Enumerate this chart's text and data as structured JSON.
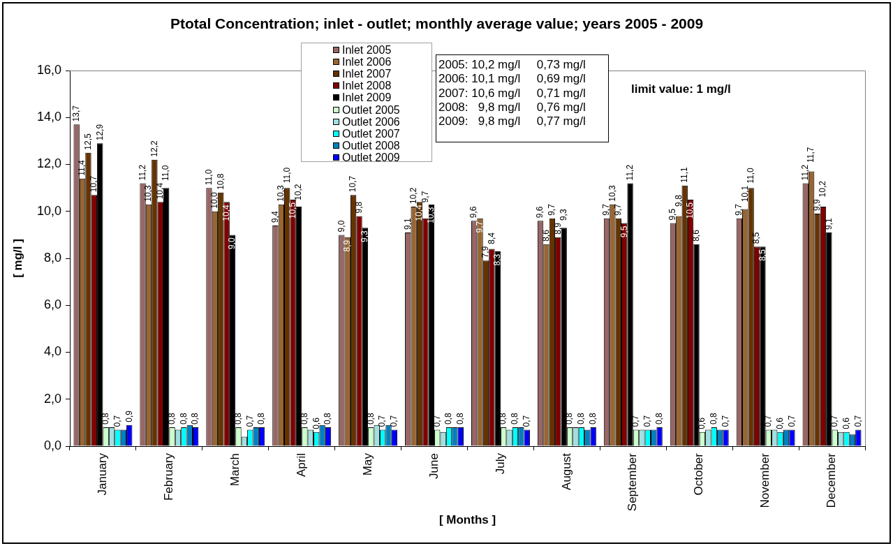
{
  "chart_data": {
    "type": "bar",
    "title": "Ptotal Concentration; inlet - outlet; monthly average value; years 2005 - 2009",
    "xlabel": "[ Months ]",
    "ylabel": "[ mg/l ]",
    "categories": [
      "January",
      "February",
      "March",
      "April",
      "May",
      "June",
      "July",
      "August",
      "September",
      "October",
      "November",
      "December"
    ],
    "series": [
      {
        "name": "Inlet 2005",
        "color": "#996666",
        "values": [
          13.7,
          11.2,
          11.0,
          9.4,
          9.0,
          9.1,
          9.6,
          9.6,
          9.7,
          9.5,
          9.7,
          11.2
        ],
        "value_labels": [
          "13,7",
          "11,2",
          "11,0",
          "9,4",
          "9,0",
          "9,1",
          "9,6",
          "9,6",
          "9,7",
          "9,5",
          "9,7",
          "11,2"
        ]
      },
      {
        "name": "Inlet 2006",
        "color": "#996633",
        "values": [
          11.4,
          10.3,
          10.0,
          10.3,
          8.9,
          10.2,
          9.7,
          8.6,
          10.3,
          9.8,
          10.1,
          11.7
        ],
        "value_labels": [
          "11,4",
          "10,3",
          "10,0",
          "10,3",
          "8,9",
          "10,2",
          "9,7",
          "8,6",
          "10,3",
          "9,8",
          "10,1",
          "11,7"
        ]
      },
      {
        "name": "Inlet 2007",
        "color": "#663300",
        "values": [
          12.5,
          12.2,
          10.8,
          11.0,
          10.7,
          10.4,
          7.9,
          9.7,
          9.7,
          11.1,
          11.0,
          9.9
        ],
        "value_labels": [
          "12,5",
          "12,2",
          "10,8",
          "11,0",
          "10,7",
          "10,4",
          "7,9",
          "9,7",
          "9,7",
          "11,1",
          "11,0",
          "9,9"
        ]
      },
      {
        "name": "Inlet 2008",
        "color": "#800000",
        "values": [
          10.7,
          10.4,
          10.4,
          10.5,
          9.8,
          9.7,
          8.4,
          8.9,
          9.5,
          10.5,
          8.5,
          10.2
        ],
        "value_labels": [
          "10,7",
          "10,4",
          "10,4",
          "10,5",
          "9,8",
          "9,7",
          "8,4",
          "8,9",
          "9,5",
          "10,5",
          "8,5",
          "10,2"
        ]
      },
      {
        "name": "Inlet 2009",
        "color": "#000000",
        "values": [
          12.9,
          11.0,
          9.0,
          10.2,
          9.3,
          10.3,
          8.3,
          9.3,
          11.2,
          8.6,
          8.5,
          9.1
        ],
        "value_labels": [
          "12,9",
          "11,0",
          "9,0",
          "10,2",
          "9,3",
          "10,3",
          "8,3",
          "9,3",
          "11,2",
          "8,6",
          "8,5",
          "9,1"
        ]
      },
      {
        "name": "Outlet 2005",
        "color": "#ccffcc",
        "values": [
          0.8,
          0.8,
          0.8,
          0.8,
          0.8,
          0.7,
          0.8,
          0.8,
          0.7,
          0.6,
          0.7,
          0.7
        ],
        "value_labels": [
          "0,8",
          "0,8",
          "0,8",
          "0,8",
          "0,8",
          "0,7",
          "0,8",
          "0,8",
          "0,7",
          "0,6",
          "0,7",
          "0,7"
        ]
      },
      {
        "name": "Outlet 2006",
        "color": "#a0e0e0",
        "values": [
          0.8,
          0.7,
          0.4,
          0.7,
          0.9,
          0.6,
          0.7,
          0.8,
          0.7,
          0.7,
          0.7,
          0.6
        ]
      },
      {
        "name": "Outlet 2007",
        "color": "#00ffff",
        "values": [
          0.7,
          0.8,
          0.7,
          0.6,
          0.7,
          0.8,
          0.8,
          0.8,
          0.7,
          0.8,
          0.6,
          0.6
        ],
        "value_labels": [
          "0,7",
          "0,8",
          "0,7",
          "0,6",
          "0,7",
          "0,8",
          "0,8",
          "0,8",
          "0,7",
          "0,8",
          "0,6",
          "0,6"
        ]
      },
      {
        "name": "Outlet 2008",
        "color": "#0080c0",
        "values": [
          0.7,
          0.9,
          0.8,
          0.9,
          0.9,
          0.8,
          0.8,
          0.7,
          0.7,
          0.7,
          0.7,
          0.5
        ]
      },
      {
        "name": "Outlet 2009",
        "color": "#0000ff",
        "values": [
          0.9,
          0.8,
          0.8,
          0.8,
          0.7,
          0.8,
          0.7,
          0.8,
          0.8,
          0.7,
          0.7,
          0.7
        ],
        "value_labels": [
          "0,9",
          "0,8",
          "0,8",
          "0,8",
          "0,7",
          "0,8",
          "0,7",
          "0,8",
          "0,8",
          "0,7",
          "0,7",
          "0,7"
        ]
      }
    ],
    "ylim": [
      0,
      16
    ],
    "yticks": [
      {
        "value": 0,
        "label": "0,0"
      },
      {
        "value": 2,
        "label": "2,0"
      },
      {
        "value": 4,
        "label": "4,0"
      },
      {
        "value": 6,
        "label": "6,0"
      },
      {
        "value": 8,
        "label": "8,0"
      },
      {
        "value": 10,
        "label": "10,0"
      },
      {
        "value": 12,
        "label": "12,0"
      },
      {
        "value": 14,
        "label": "14,0"
      },
      {
        "value": 16,
        "label": "16,0"
      }
    ],
    "legend": "top",
    "annotations": [
      "2005: 10,2 mg/l     0,73 mg/l\n2006: 10,1 mg/l     0,69 mg/l\n2007: 10,6 mg/l     0,71 mg/l\n2008:   9,8 mg/l     0,76 mg/l\n2009:   9,8 mg/l     0,77 mg/l",
      "limit value: 1 mg/l"
    ]
  }
}
